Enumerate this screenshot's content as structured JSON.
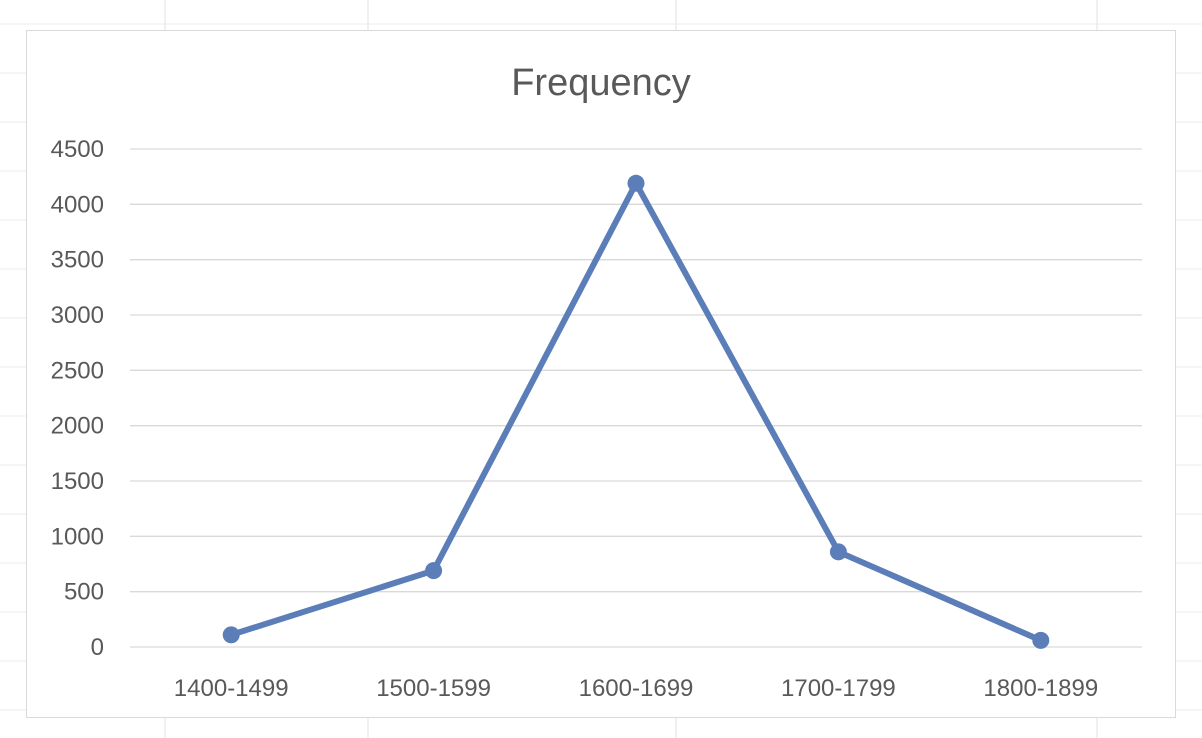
{
  "chart_data": {
    "type": "line",
    "title": "Frequency",
    "xlabel": "",
    "ylabel": "",
    "categories": [
      "1400-1499",
      "1500-1599",
      "1600-1699",
      "1700-1799",
      "1800-1899"
    ],
    "series": [
      {
        "values": [
          110,
          690,
          4190,
          860,
          60
        ]
      }
    ],
    "ylim": [
      0,
      4500
    ],
    "yticks": [
      0,
      500,
      1000,
      1500,
      2000,
      2500,
      3000,
      3500,
      4000,
      4500
    ],
    "grid": true,
    "legend": "none",
    "colors": {
      "line": "#5b7db8",
      "gridline": "#d9d9d9",
      "text": "#595959"
    }
  }
}
